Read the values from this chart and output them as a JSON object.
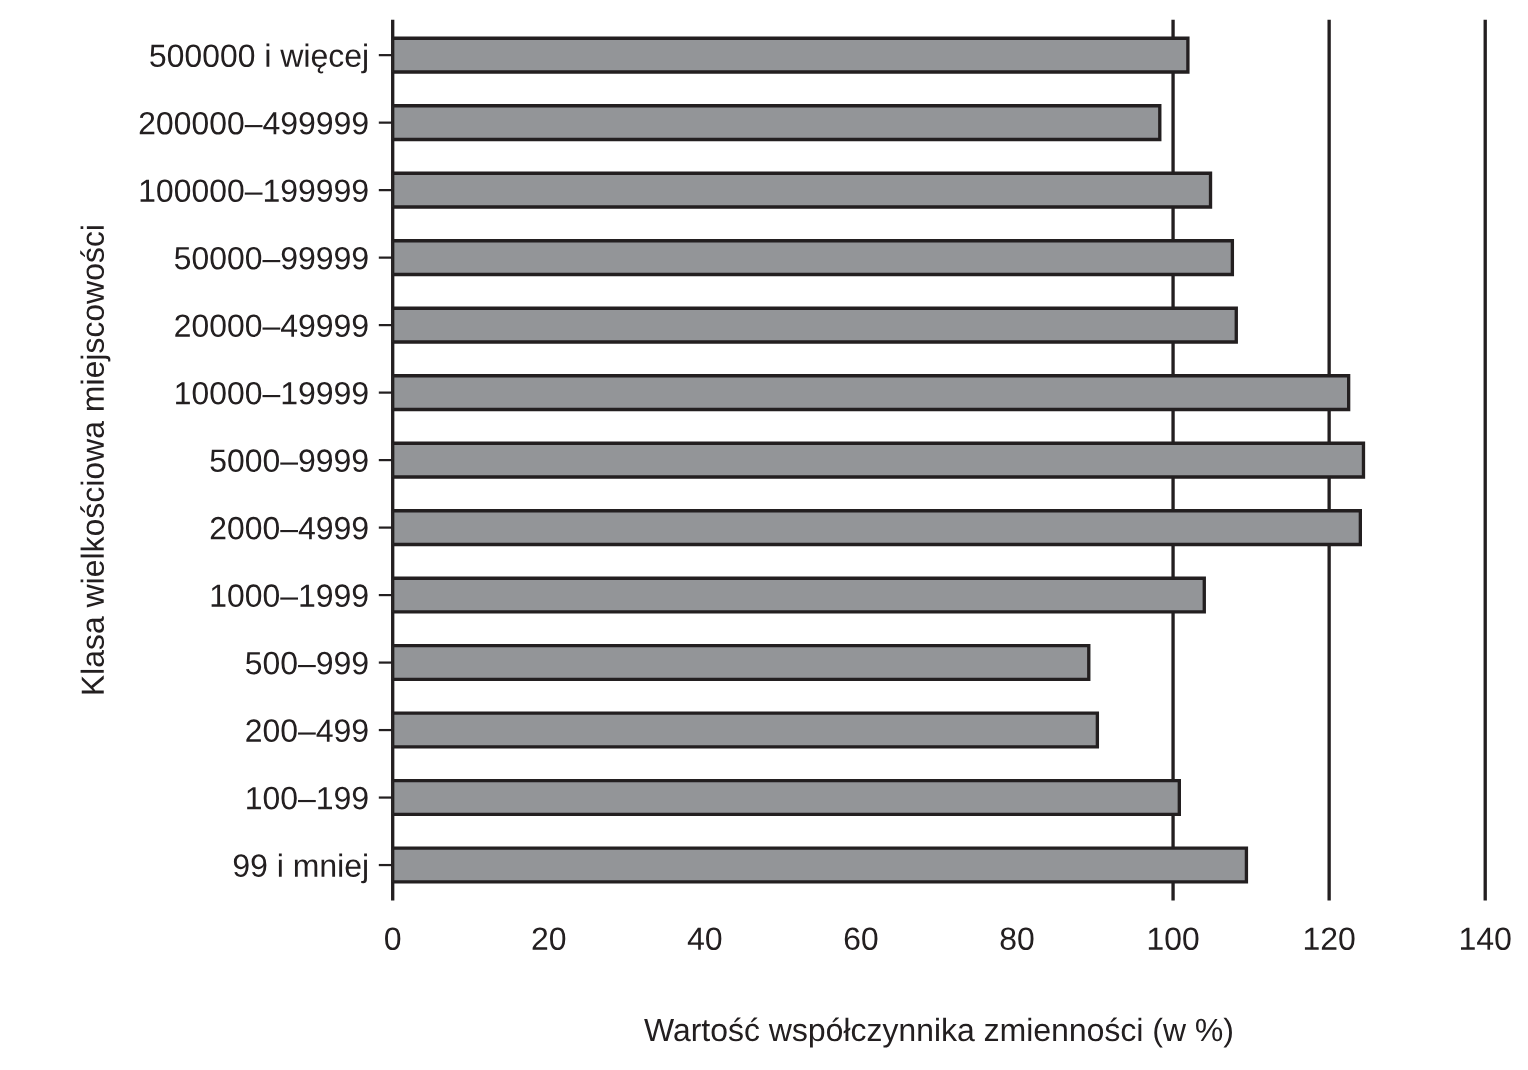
{
  "chart_data": {
    "type": "bar",
    "orientation": "horizontal",
    "xlabel": "Wartość współczynnika zmienności (w %)",
    "ylabel": "Klasa wielkościowa miejscowości",
    "categories": [
      "500000 i więcej",
      "200000–499999",
      "100000–199999",
      "50000–99999",
      "20000–49999",
      "10000–19999",
      "5000–9999",
      "2000–4999",
      "1000–1999",
      "500–999",
      "200–499",
      "100–199",
      "99 i mniej"
    ],
    "values": [
      101.9,
      98.3,
      104.8,
      107.6,
      108.1,
      122.5,
      124.4,
      124.0,
      104.0,
      89.2,
      90.3,
      100.8,
      109.4
    ],
    "color": "#939598",
    "xlim": [
      0,
      140
    ],
    "xticks": [
      0,
      20,
      40,
      60,
      80,
      100,
      120,
      140
    ],
    "grid": false,
    "ref_lines": [
      {
        "axis": "x",
        "value": 100,
        "color": "#231f20"
      },
      {
        "axis": "x",
        "value": 120,
        "color": "#231f20"
      }
    ]
  }
}
